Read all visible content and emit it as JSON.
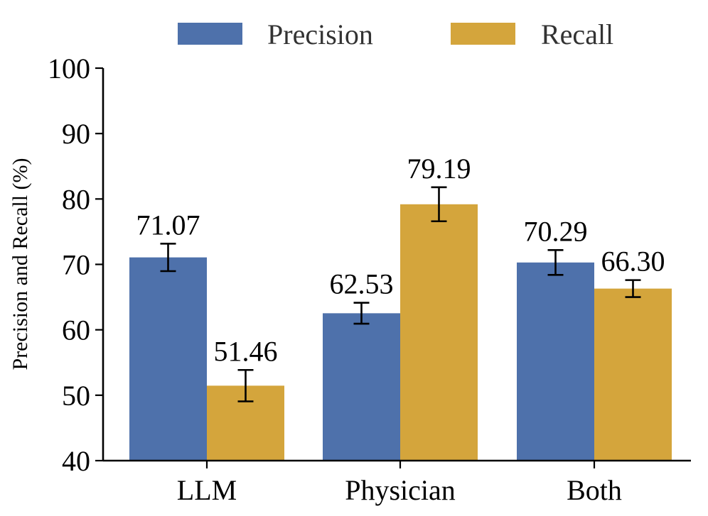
{
  "chart_data": {
    "type": "bar",
    "title": "",
    "xlabel": "",
    "ylabel": "Precision and Recall (%)",
    "ylim": [
      40,
      100
    ],
    "yticks": [
      "40",
      "50",
      "60",
      "70",
      "80",
      "90",
      "100"
    ],
    "categories": [
      "LLM",
      "Physician",
      "Both"
    ],
    "legend_position": "top-center",
    "grid": false,
    "series": [
      {
        "name": "Precision",
        "color": "#4e71ab",
        "values": [
          71.07,
          62.53,
          70.29
        ],
        "labels": [
          "71.07",
          "62.53",
          "70.29"
        ],
        "error": [
          2.1,
          1.6,
          1.9
        ]
      },
      {
        "name": "Recall",
        "color": "#d4a53c",
        "values": [
          51.46,
          79.19,
          66.3
        ],
        "labels": [
          "51.46",
          "79.19",
          "66.30"
        ],
        "error": [
          2.4,
          2.6,
          1.3
        ]
      }
    ]
  }
}
